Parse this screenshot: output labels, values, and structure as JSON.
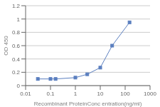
{
  "chart_data": {
    "type": "line",
    "x": [
      0.031,
      0.1,
      0.16,
      1.0,
      3.0,
      10.0,
      30.0,
      150.0
    ],
    "values": [
      0.1,
      0.1,
      0.1,
      0.12,
      0.17,
      0.27,
      0.6,
      0.95
    ],
    "color": "#5B7FBF",
    "marker": "square",
    "xlabel": "Recombinant ProteinConc entration(ng/ml)",
    "ylabel": "OD 450",
    "log": "x",
    "xlim": [
      0.01,
      1000
    ],
    "ylim": [
      0,
      1.2
    ],
    "xticks": [
      0.01,
      0.1,
      1,
      10,
      100,
      1000
    ],
    "yticks": [
      0,
      0.2,
      0.4,
      0.6,
      0.8,
      1,
      1.2
    ],
    "grid": "y"
  }
}
